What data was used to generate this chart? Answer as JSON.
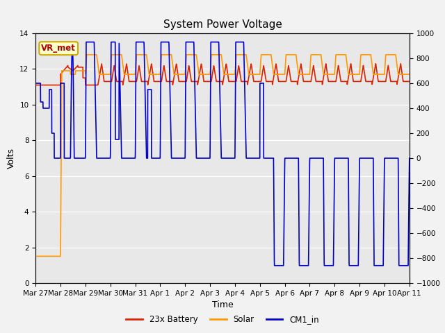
{
  "title": "System Power Voltage",
  "xlabel": "Time",
  "ylabel": "Volts",
  "ylim_left": [
    0,
    14
  ],
  "ylim_right": [
    -1000,
    1000
  ],
  "yticks_left": [
    0,
    2,
    4,
    6,
    8,
    10,
    12,
    14
  ],
  "yticks_right": [
    -1000,
    -800,
    -600,
    -400,
    -200,
    0,
    200,
    400,
    600,
    800,
    1000
  ],
  "background_color": "#f2f2f2",
  "plot_bg_color": "#e8e8e8",
  "grid_color": "#ffffff",
  "vr_met_label": "VR_met",
  "vr_met_box_facecolor": "#ffffcc",
  "vr_met_box_edgecolor": "#ccaa00",
  "vr_met_text_color": "#aa0000",
  "legend_labels": [
    "23x Battery",
    "Solar",
    "CM1_in"
  ],
  "battery_color": "#dd2200",
  "solar_color": "#ff9900",
  "cm1_color": "#0000cc",
  "x_tick_labels": [
    "Mar 27",
    "Mar 28",
    "Mar 29",
    "Mar 30",
    "Mar 31",
    "Apr 1",
    "Apr 2",
    "Apr 3",
    "Apr 4",
    "Apr 5",
    "Apr 6",
    "Apr 7",
    "Apr 8",
    "Apr 9",
    "Apr 10",
    "Apr 11"
  ],
  "line_width": 1.2,
  "title_fontsize": 11,
  "tick_fontsize": 7.5,
  "label_fontsize": 9,
  "legend_fontsize": 8.5
}
